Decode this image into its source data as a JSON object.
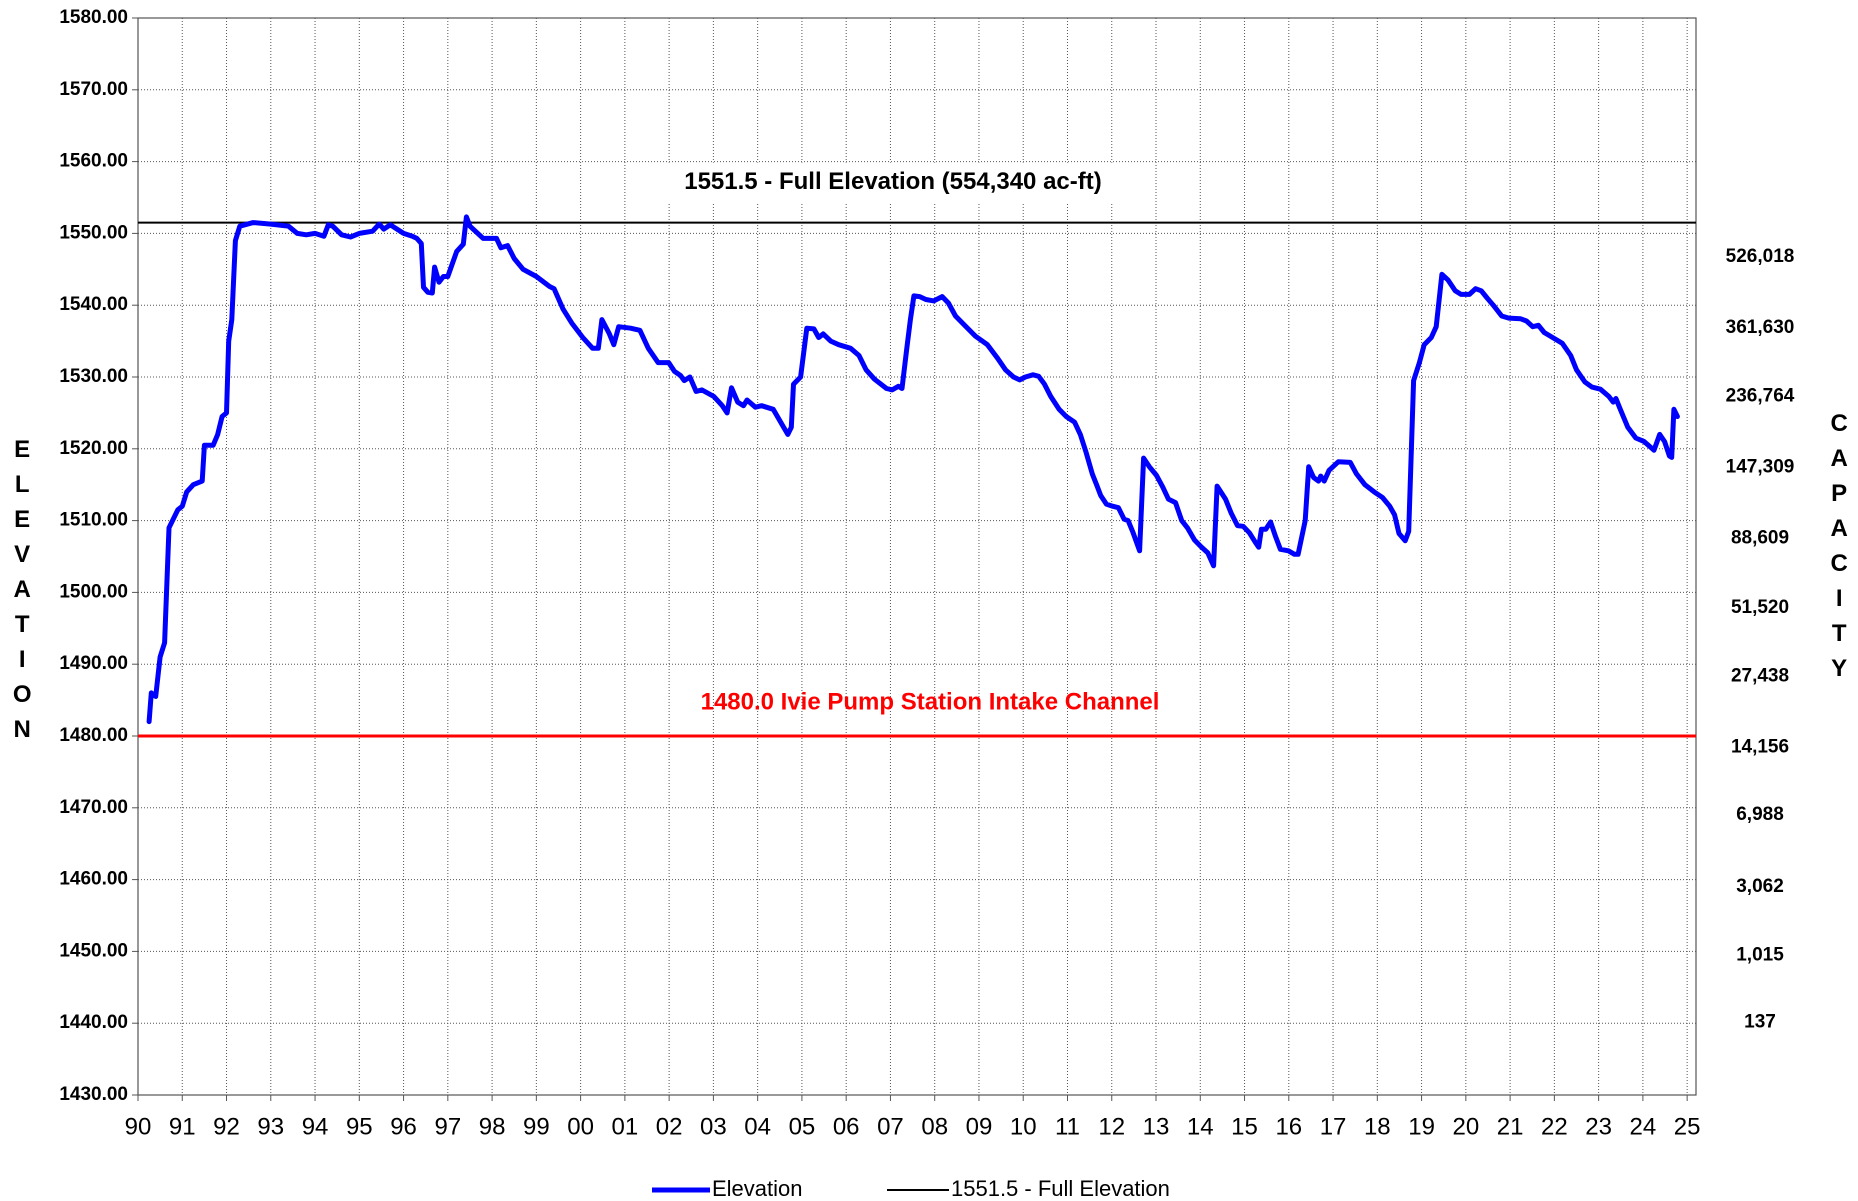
{
  "chart_data": {
    "type": "line",
    "ylabel": "ELEVATION",
    "y2label": "CAPACITY",
    "xlim": [
      1990,
      2025.2
    ],
    "ylim": [
      1430,
      1580
    ],
    "grid": true,
    "xticks": [
      {
        "value": 1990,
        "label": "90"
      },
      {
        "value": 1991,
        "label": "91"
      },
      {
        "value": 1992,
        "label": "92"
      },
      {
        "value": 1993,
        "label": "93"
      },
      {
        "value": 1994,
        "label": "94"
      },
      {
        "value": 1995,
        "label": "95"
      },
      {
        "value": 1996,
        "label": "96"
      },
      {
        "value": 1997,
        "label": "97"
      },
      {
        "value": 1998,
        "label": "98"
      },
      {
        "value": 1999,
        "label": "99"
      },
      {
        "value": 2000,
        "label": "00"
      },
      {
        "value": 2001,
        "label": "01"
      },
      {
        "value": 2002,
        "label": "02"
      },
      {
        "value": 2003,
        "label": "03"
      },
      {
        "value": 2004,
        "label": "04"
      },
      {
        "value": 2005,
        "label": "05"
      },
      {
        "value": 2006,
        "label": "06"
      },
      {
        "value": 2007,
        "label": "07"
      },
      {
        "value": 2008,
        "label": "08"
      },
      {
        "value": 2009,
        "label": "09"
      },
      {
        "value": 2010,
        "label": "10"
      },
      {
        "value": 2011,
        "label": "11"
      },
      {
        "value": 2012,
        "label": "12"
      },
      {
        "value": 2013,
        "label": "13"
      },
      {
        "value": 2014,
        "label": "14"
      },
      {
        "value": 2015,
        "label": "15"
      },
      {
        "value": 2016,
        "label": "16"
      },
      {
        "value": 2017,
        "label": "17"
      },
      {
        "value": 2018,
        "label": "18"
      },
      {
        "value": 2019,
        "label": "19"
      },
      {
        "value": 2020,
        "label": "20"
      },
      {
        "value": 2021,
        "label": "21"
      },
      {
        "value": 2022,
        "label": "22"
      },
      {
        "value": 2023,
        "label": "23"
      },
      {
        "value": 2024,
        "label": "24"
      },
      {
        "value": 2025,
        "label": "25"
      }
    ],
    "yticks": [
      {
        "value": 1580,
        "label": "1580.00"
      },
      {
        "value": 1570,
        "label": "1570.00"
      },
      {
        "value": 1560,
        "label": "1560.00"
      },
      {
        "value": 1550,
        "label": "1550.00"
      },
      {
        "value": 1540,
        "label": "1540.00"
      },
      {
        "value": 1530,
        "label": "1530.00"
      },
      {
        "value": 1520,
        "label": "1520.00"
      },
      {
        "value": 1510,
        "label": "1510.00"
      },
      {
        "value": 1500,
        "label": "1500.00"
      },
      {
        "value": 1490,
        "label": "1490.00"
      },
      {
        "value": 1480,
        "label": "1480.00"
      },
      {
        "value": 1470,
        "label": "1470.00"
      },
      {
        "value": 1460,
        "label": "1460.00"
      },
      {
        "value": 1450,
        "label": "1450.00"
      },
      {
        "value": 1440,
        "label": "1440.00"
      },
      {
        "value": 1430,
        "label": "1430.00"
      }
    ],
    "capacity_ticks": [
      {
        "value": 526018,
        "label": "526,018",
        "elevation": 1546.7
      },
      {
        "value": 361630,
        "label": "361,630",
        "elevation": 1536.8
      },
      {
        "value": 236764,
        "label": "236,764",
        "elevation": 1527.3
      },
      {
        "value": 147309,
        "label": "147,309",
        "elevation": 1517.4
      },
      {
        "value": 88609,
        "label": "88,609",
        "elevation": 1507.5
      },
      {
        "value": 51520,
        "label": "51,520",
        "elevation": 1497.8
      },
      {
        "value": 27438,
        "label": "27,438",
        "elevation": 1488.3
      },
      {
        "value": 14156,
        "label": "14,156",
        "elevation": 1478.4
      },
      {
        "value": 6988,
        "label": "6,988",
        "elevation": 1469
      },
      {
        "value": 3062,
        "label": "3,062",
        "elevation": 1459
      },
      {
        "value": 1015,
        "label": "1,015",
        "elevation": 1449.4
      },
      {
        "value": 137,
        "label": "137",
        "elevation": 1440.1
      }
    ],
    "reference_lines": [
      {
        "name": "1551.5 - Full Elevation",
        "value": 1551.5,
        "color": "#000000",
        "label": "1551.5 - Full Elevation (554,340 ac-ft)"
      },
      {
        "value": 1480,
        "color": "#ff0000",
        "label": "1480.0 Ivie Pump Station Intake Channel"
      }
    ],
    "x": [
      1990.25,
      1990.3,
      1990.4,
      1990.5,
      1990.6,
      1990.7,
      1990.9,
      1991.0,
      1991.1,
      1991.25,
      1991.45,
      1991.5,
      1991.7,
      1991.8,
      1991.9,
      1992.0,
      1992.05,
      1992.12,
      1992.2,
      1992.3,
      1992.6,
      1993.0,
      1993.4,
      1993.6,
      1993.8,
      1994.0,
      1994.2,
      1994.3,
      1994.4,
      1994.6,
      1994.8,
      1995.0,
      1995.3,
      1995.45,
      1995.55,
      1995.7,
      1996.0,
      1996.2,
      1996.3,
      1996.4,
      1996.45,
      1996.55,
      1996.65,
      1996.7,
      1996.8,
      1996.9,
      1997.0,
      1997.2,
      1997.35,
      1997.42,
      1997.5,
      1997.8,
      1998.1,
      1998.2,
      1998.35,
      1998.5,
      1998.7,
      1999.0,
      1999.3,
      1999.4,
      1999.6,
      1999.8,
      2000.05,
      2000.27,
      2000.4,
      2000.48,
      2000.65,
      2000.75,
      2000.86,
      2001.13,
      2001.34,
      2001.53,
      2001.75,
      2001.99,
      2002.12,
      2002.26,
      2002.34,
      2002.47,
      2002.61,
      2002.74,
      2003.01,
      2003.2,
      2003.31,
      2003.41,
      2003.55,
      2003.68,
      2003.76,
      2003.95,
      2004.09,
      2004.35,
      2004.54,
      2004.68,
      2004.76,
      2004.81,
      2004.97,
      2005.11,
      2005.27,
      2005.38,
      2005.48,
      2005.65,
      2005.83,
      2006.1,
      2006.29,
      2006.45,
      2006.64,
      2006.91,
      2007.04,
      2007.18,
      2007.26,
      2007.37,
      2007.45,
      2007.53,
      2007.66,
      2007.8,
      2007.98,
      2008.17,
      2008.31,
      2008.47,
      2008.71,
      2008.92,
      2009.19,
      2009.41,
      2009.6,
      2009.78,
      2009.92,
      2010.05,
      2010.22,
      2010.35,
      2010.48,
      2010.62,
      2010.81,
      2010.97,
      2011.16,
      2011.29,
      2011.42,
      2011.56,
      2011.67,
      2011.75,
      2011.88,
      2012.02,
      2012.15,
      2012.28,
      2012.37,
      2012.47,
      2012.63,
      2012.72,
      2012.85,
      2013.01,
      2013.15,
      2013.28,
      2013.44,
      2013.58,
      2013.71,
      2013.87,
      2014.03,
      2014.17,
      2014.3,
      2014.38,
      2014.57,
      2014.7,
      2014.84,
      2014.97,
      2015.11,
      2015.24,
      2015.32,
      2015.38,
      2015.48,
      2015.59,
      2015.7,
      2015.81,
      2015.99,
      2016.13,
      2016.21,
      2016.37,
      2016.45,
      2016.56,
      2016.67,
      2016.72,
      2016.8,
      2016.91,
      2017.12,
      2017.39,
      2017.53,
      2017.72,
      2017.93,
      2018.12,
      2018.28,
      2018.39,
      2018.49,
      2018.63,
      2018.71,
      2018.82,
      2018.95,
      2019.06,
      2019.22,
      2019.33,
      2019.46,
      2019.6,
      2019.76,
      2019.89,
      2020.08,
      2020.22,
      2020.35,
      2020.48,
      2020.62,
      2020.81,
      2020.97,
      2021.24,
      2021.37,
      2021.51,
      2021.64,
      2021.77,
      2021.96,
      2022.18,
      2022.37,
      2022.5,
      2022.69,
      2022.85,
      2023.04,
      2023.23,
      2023.33,
      2023.39,
      2023.49,
      2023.66,
      2023.84,
      2024.03,
      2024.25,
      2024.38,
      2024.49,
      2024.6,
      2024.65,
      2024.7,
      2024.78
    ],
    "series": [
      {
        "name": "Elevation",
        "color": "#0000ff",
        "values": [
          1482,
          1486,
          1485.5,
          1491,
          1493,
          1509,
          1511.5,
          1512,
          1514,
          1515,
          1515.5,
          1520.5,
          1520.5,
          1522,
          1524.5,
          1525,
          1535,
          1538,
          1549,
          1551,
          1551.5,
          1551.3,
          1551,
          1550,
          1549.8,
          1550,
          1549.6,
          1551.2,
          1551,
          1549.8,
          1549.5,
          1550,
          1550.3,
          1551.3,
          1550.6,
          1551.2,
          1550,
          1549.6,
          1549.3,
          1548.6,
          1542.5,
          1541.8,
          1541.7,
          1545.3,
          1543.2,
          1544,
          1544,
          1547.5,
          1548.5,
          1552.3,
          1551,
          1549.3,
          1549.3,
          1548,
          1548.3,
          1546.5,
          1545,
          1544,
          1542.6,
          1542.3,
          1539.5,
          1537.5,
          1535.5,
          1534,
          1534,
          1538,
          1536,
          1534.5,
          1537,
          1536.8,
          1536.5,
          1534,
          1532,
          1532,
          1530.8,
          1530.2,
          1529.5,
          1530,
          1528,
          1528.2,
          1527.3,
          1526,
          1525,
          1528.5,
          1526.5,
          1526,
          1526.8,
          1525.8,
          1526,
          1525.5,
          1523.5,
          1522,
          1523,
          1529,
          1530,
          1536.8,
          1536.7,
          1535.5,
          1536,
          1535,
          1534.5,
          1534,
          1533,
          1531,
          1529.7,
          1528.4,
          1528.2,
          1528.7,
          1528.4,
          1534,
          1538,
          1541.3,
          1541.2,
          1540.8,
          1540.6,
          1541.2,
          1540.3,
          1538.5,
          1537,
          1535.7,
          1534.5,
          1532.7,
          1531,
          1530,
          1529.6,
          1530,
          1530.3,
          1530.1,
          1529,
          1527.3,
          1525.5,
          1524.5,
          1523.7,
          1522,
          1519.5,
          1516.5,
          1514.8,
          1513.5,
          1512.3,
          1512,
          1511.8,
          1510.2,
          1510,
          1508.5,
          1505.8,
          1518.7,
          1517.5,
          1516.3,
          1514.7,
          1513,
          1512.5,
          1510,
          1509,
          1507.3,
          1506.3,
          1505.5,
          1503.7,
          1514.8,
          1513,
          1511,
          1509.3,
          1509.2,
          1508.3,
          1507,
          1506.3,
          1508.8,
          1508.8,
          1509.8,
          1507.8,
          1506,
          1505.8,
          1505.3,
          1505.3,
          1510,
          1517.5,
          1516,
          1515.5,
          1516.2,
          1515.5,
          1517,
          1518.2,
          1518.1,
          1516.5,
          1515,
          1514,
          1513.2,
          1512,
          1510.8,
          1508.2,
          1507.2,
          1508.5,
          1529.5,
          1532,
          1534.5,
          1535.5,
          1537,
          1544.3,
          1543.5,
          1542,
          1541.5,
          1541.5,
          1542.3,
          1542,
          1541,
          1540,
          1538.5,
          1538.2,
          1538.1,
          1537.8,
          1537,
          1537.2,
          1536.2,
          1535.5,
          1534.7,
          1533,
          1531,
          1529.3,
          1528.6,
          1528.3,
          1527.3,
          1526.5,
          1527,
          1525.5,
          1523,
          1521.5,
          1521,
          1519.8,
          1522,
          1521,
          1519,
          1518.8,
          1525.5,
          1524.5
        ]
      }
    ]
  }
}
